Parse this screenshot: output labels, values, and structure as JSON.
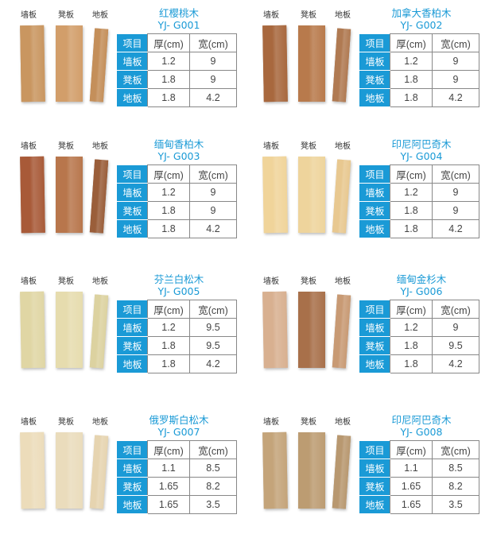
{
  "labels": {
    "wall": "墙板",
    "bench": "凳板",
    "floor": "地板"
  },
  "header": {
    "item": "项目",
    "thickness": "厚(cm)",
    "width": "宽(cm)"
  },
  "accent": "#1a9ad6",
  "products": [
    {
      "name": "红樱桃木",
      "code": "YJ- G001",
      "colors": [
        "#c99660",
        "#d29e6a",
        "#c48f5a"
      ],
      "rows": [
        {
          "label": "墙板",
          "t": "1.2",
          "w": "9"
        },
        {
          "label": "凳板",
          "t": "1.8",
          "w": "9"
        },
        {
          "label": "地板",
          "t": "1.8",
          "w": "4.2"
        }
      ]
    },
    {
      "name": "加拿大香柏木",
      "code": "YJ- G002",
      "colors": [
        "#a8683e",
        "#b87a4c",
        "#b07a52"
      ],
      "rows": [
        {
          "label": "墙板",
          "t": "1.2",
          "w": "9"
        },
        {
          "label": "凳板",
          "t": "1.8",
          "w": "9"
        },
        {
          "label": "地板",
          "t": "1.8",
          "w": "4.2"
        }
      ]
    },
    {
      "name": "缅甸香柏木",
      "code": "YJ- G003",
      "colors": [
        "#a85a38",
        "#b8764c",
        "#9a5e3a"
      ],
      "rows": [
        {
          "label": "墙板",
          "t": "1.2",
          "w": "9"
        },
        {
          "label": "凳板",
          "t": "1.8",
          "w": "9"
        },
        {
          "label": "地板",
          "t": "1.8",
          "w": "4.2"
        }
      ]
    },
    {
      "name": "印尼阿巴奇木",
      "code": "YJ- G004",
      "colors": [
        "#f0d49a",
        "#eed49c",
        "#e8c890"
      ],
      "rows": [
        {
          "label": "墙板",
          "t": "1.2",
          "w": "9"
        },
        {
          "label": "凳板",
          "t": "1.8",
          "w": "9"
        },
        {
          "label": "地板",
          "t": "1.8",
          "w": "4.2"
        }
      ]
    },
    {
      "name": "芬兰白松木",
      "code": "YJ- G005",
      "colors": [
        "#e0d6a4",
        "#e6dcae",
        "#dcd2a0"
      ],
      "rows": [
        {
          "label": "墙板",
          "t": "1.2",
          "w": "9.5"
        },
        {
          "label": "凳板",
          "t": "1.8",
          "w": "9.5"
        },
        {
          "label": "地板",
          "t": "1.8",
          "w": "4.2"
        }
      ]
    },
    {
      "name": "缅甸金杉木",
      "code": "YJ- G006",
      "colors": [
        "#d8b090",
        "#a8704a",
        "#c89a74"
      ],
      "rows": [
        {
          "label": "墙板",
          "t": "1.2",
          "w": "9"
        },
        {
          "label": "凳板",
          "t": "1.8",
          "w": "9.5"
        },
        {
          "label": "地板",
          "t": "1.8",
          "w": "4.2"
        }
      ]
    },
    {
      "name": "俄罗斯白松木",
      "code": "YJ- G007",
      "colors": [
        "#ecdcba",
        "#eadcbc",
        "#e6d4b0"
      ],
      "rows": [
        {
          "label": "墙板",
          "t": "1.1",
          "w": "8.5"
        },
        {
          "label": "凳板",
          "t": "1.65",
          "w": "8.2"
        },
        {
          "label": "地板",
          "t": "1.65",
          "w": "3.5"
        }
      ]
    },
    {
      "name": "印尼阿巴奇木",
      "code": "YJ- G008",
      "colors": [
        "#c4a47a",
        "#bc9c72",
        "#b89870"
      ],
      "rows": [
        {
          "label": "墙板",
          "t": "1.1",
          "w": "8.5"
        },
        {
          "label": "凳板",
          "t": "1.65",
          "w": "8.2"
        },
        {
          "label": "地板",
          "t": "1.65",
          "w": "3.5"
        }
      ]
    }
  ]
}
